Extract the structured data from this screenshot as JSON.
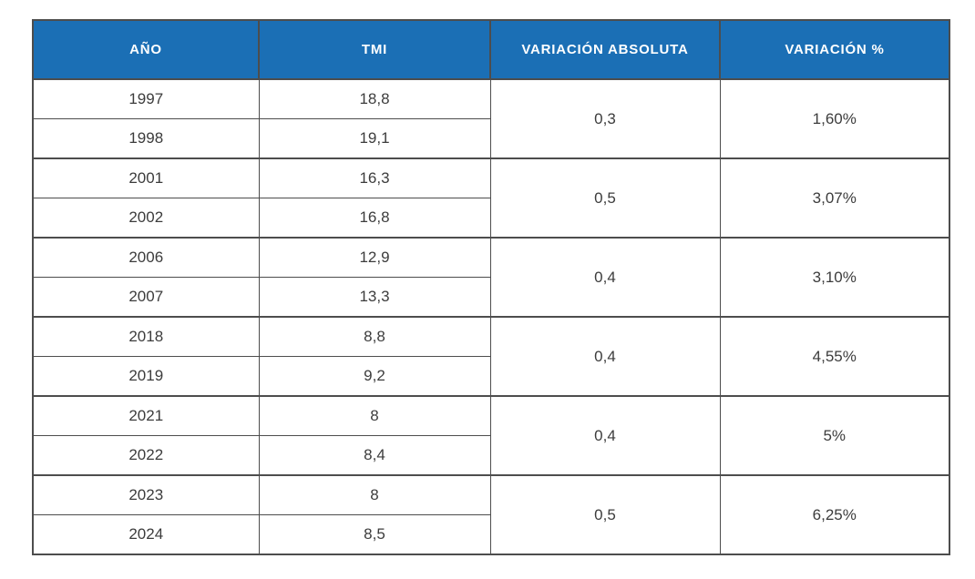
{
  "colors": {
    "header_bg": "#1b6fb5",
    "header_text": "#ffffff",
    "grid_border": "#4d4d4d",
    "body_text": "#3c3c3c",
    "background": "#ffffff"
  },
  "chart_data": {
    "type": "table",
    "columns": [
      "AÑO",
      "TMI",
      "VARIACIÓN ABSOLUTA",
      "VARIACIÓN %"
    ],
    "groups": [
      {
        "rows": [
          {
            "year": "1997",
            "tmi": "18,8"
          },
          {
            "year": "1998",
            "tmi": "19,1"
          }
        ],
        "variacion_absoluta": "0,3",
        "variacion_pct": "1,60%"
      },
      {
        "rows": [
          {
            "year": "2001",
            "tmi": "16,3"
          },
          {
            "year": "2002",
            "tmi": "16,8"
          }
        ],
        "variacion_absoluta": "0,5",
        "variacion_pct": "3,07%"
      },
      {
        "rows": [
          {
            "year": "2006",
            "tmi": "12,9"
          },
          {
            "year": "2007",
            "tmi": "13,3"
          }
        ],
        "variacion_absoluta": "0,4",
        "variacion_pct": "3,10%"
      },
      {
        "rows": [
          {
            "year": "2018",
            "tmi": "8,8"
          },
          {
            "year": "2019",
            "tmi": "9,2"
          }
        ],
        "variacion_absoluta": "0,4",
        "variacion_pct": "4,55%"
      },
      {
        "rows": [
          {
            "year": "2021",
            "tmi": "8"
          },
          {
            "year": "2022",
            "tmi": "8,4"
          }
        ],
        "variacion_absoluta": "0,4",
        "variacion_pct": "5%"
      },
      {
        "rows": [
          {
            "year": "2023",
            "tmi": "8"
          },
          {
            "year": "2024",
            "tmi": "8,5"
          }
        ],
        "variacion_absoluta": "0,5",
        "variacion_pct": "6,25%"
      }
    ]
  }
}
